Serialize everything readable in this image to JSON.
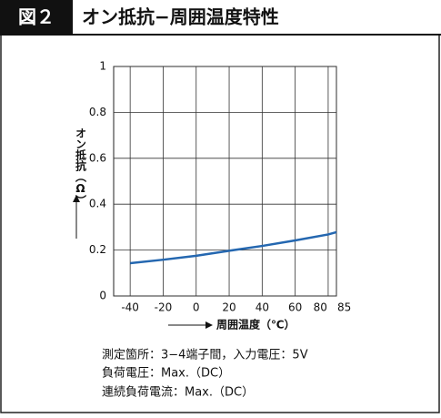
{
  "header": {
    "figure": "図２",
    "title": "オン抵抗−周囲温度特性"
  },
  "chart_data": {
    "type": "line",
    "xlabel": "周囲温度（℃）",
    "ylabel": "オン抵抗（Ω）",
    "x": [
      -40,
      -20,
      0,
      20,
      40,
      60,
      80,
      85
    ],
    "series": [
      {
        "color": "#2467b0",
        "values": [
          0.143,
          0.158,
          0.175,
          0.197,
          0.218,
          0.242,
          0.268,
          0.278
        ]
      }
    ],
    "xlim": [
      -50,
      85
    ],
    "xticks": [
      -40,
      -20,
      0,
      20,
      40,
      60,
      80,
      85
    ],
    "ylim": [
      0,
      1
    ],
    "yticks": [
      0,
      0.2,
      0.4,
      0.6,
      0.8,
      1
    ],
    "grid": true
  },
  "notes": [
    "測定箇所：3−4端子間，入力電圧：5V",
    "負荷電圧：Max.（DC）",
    "連続負荷電流：Max.（DC）"
  ]
}
